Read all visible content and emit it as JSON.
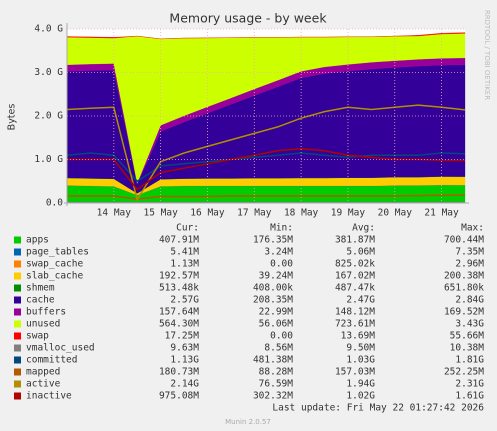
{
  "chart_data": {
    "type": "area",
    "title": "Memory usage - by week",
    "y_label": "Bytes",
    "watermark": "RRDTOOL / TOBI OETIKER",
    "categories": [
      null,
      null,
      "14 May",
      null,
      "15 May",
      null,
      "16 May",
      null,
      "17 May",
      null,
      "18 May",
      null,
      "19 May",
      null,
      "20 May",
      null,
      "21 May",
      null
    ],
    "ylim": [
      0,
      4000000000
    ],
    "yticks": [
      {
        "value": 0,
        "label": "0.0"
      },
      {
        "value": 1000000000,
        "label": "1.0 G"
      },
      {
        "value": 2000000000,
        "label": "2.0 G"
      },
      {
        "value": 3000000000,
        "label": "3.0 G"
      },
      {
        "value": 4000000000,
        "label": "4.0 G"
      }
    ],
    "grid": true,
    "legend_headers": [
      "Cur:",
      "Min:",
      "Avg:",
      "Max:"
    ],
    "series": [
      {
        "name": "apps",
        "color": "#00cc00",
        "style": "area",
        "cur": "407.91M",
        "min": "176.35M",
        "avg": "381.87M",
        "max": "700.44M",
        "values": [
          400000000,
          390000000,
          380000000,
          180000000,
          380000000,
          390000000,
          390000000,
          390000000,
          390000000,
          390000000,
          390000000,
          390000000,
          390000000,
          390000000,
          400000000,
          400000000,
          410000000,
          408000000
        ]
      },
      {
        "name": "page_tables",
        "color": "#0066b3",
        "style": "area",
        "cur": "5.41M",
        "min": "3.24M",
        "avg": "5.06M",
        "max": "7.35M",
        "values": [
          5000000,
          5000000,
          5000000,
          3300000,
          5000000,
          5000000,
          5000000,
          5000000,
          5000000,
          5000000,
          5000000,
          5000000,
          5000000,
          5000000,
          5000000,
          5000000,
          5400000,
          5400000
        ]
      },
      {
        "name": "swap_cache",
        "color": "#ff8000",
        "style": "area",
        "cur": "1.13M",
        "min": "0.00",
        "avg": "825.02k",
        "max": "2.96M",
        "values": [
          800000,
          800000,
          800000,
          0,
          800000,
          800000,
          800000,
          800000,
          800000,
          800000,
          800000,
          800000,
          800000,
          800000,
          900000,
          1000000,
          1100000,
          1130000
        ]
      },
      {
        "name": "slab_cache",
        "color": "#ffcc00",
        "style": "area",
        "cur": "192.57M",
        "min": "39.24M",
        "avg": "167.02M",
        "max": "200.38M",
        "values": [
          170000000,
          170000000,
          170000000,
          40000000,
          160000000,
          165000000,
          170000000,
          170000000,
          175000000,
          175000000,
          180000000,
          180000000,
          185000000,
          185000000,
          190000000,
          190000000,
          192000000,
          192600000
        ]
      },
      {
        "name": "shmem",
        "color": "#008f00",
        "style": "area",
        "cur": "513.48k",
        "min": "408.00k",
        "avg": "487.47k",
        "max": "651.80k",
        "values": [
          490000,
          490000,
          490000,
          410000,
          480000,
          480000,
          490000,
          490000,
          490000,
          490000,
          490000,
          490000,
          500000,
          500000,
          500000,
          510000,
          510000,
          513000
        ]
      },
      {
        "name": "cache",
        "color": "#330099",
        "style": "area",
        "cur": "2.57G",
        "min": "208.35M",
        "avg": "2.47G",
        "max": "2.84G",
        "values": [
          2450000000,
          2480000000,
          2500000000,
          210000000,
          1100000000,
          1300000000,
          1500000000,
          1700000000,
          1900000000,
          2100000000,
          2300000000,
          2400000000,
          2450000000,
          2500000000,
          2520000000,
          2550000000,
          2560000000,
          2570000000
        ]
      },
      {
        "name": "buffers",
        "color": "#990099",
        "style": "area",
        "cur": "157.64M",
        "min": "22.99M",
        "avg": "148.12M",
        "max": "169.52M",
        "values": [
          150000000,
          150000000,
          150000000,
          23000000,
          140000000,
          145000000,
          145000000,
          148000000,
          150000000,
          150000000,
          152000000,
          153000000,
          155000000,
          155000000,
          156000000,
          157000000,
          157000000,
          157600000
        ]
      },
      {
        "name": "unused",
        "color": "#ccff00",
        "style": "area",
        "cur": "564.30M",
        "min": "56.06M",
        "avg": "723.61M",
        "max": "3.43G",
        "values": [
          635000000,
          605000000,
          585000000,
          3380000000,
          1985000000,
          1785000000,
          1585000000,
          1385000000,
          1185000000,
          985000000,
          785000000,
          685000000,
          635000000,
          585000000,
          565000000,
          535000000,
          560000000,
          564000000
        ]
      },
      {
        "name": "swap",
        "color": "#ff0000",
        "style": "area",
        "cur": "17.25M",
        "min": "0.00",
        "avg": "13.69M",
        "max": "55.66M",
        "values": [
          17000000,
          17000000,
          17000000,
          0,
          0,
          0,
          0,
          0,
          0,
          0,
          0,
          0,
          0,
          0,
          0,
          17000000,
          17000000,
          17250000
        ]
      },
      {
        "name": "vmalloc_used",
        "color": "#808080",
        "style": "line",
        "cur": "9.63M",
        "min": "8.56M",
        "avg": "9.50M",
        "max": "10.38M",
        "values": [
          9500000,
          9500000,
          9500000,
          8600000,
          9500000,
          9500000,
          9500000,
          9500000,
          9500000,
          9500000,
          9500000,
          9500000,
          9500000,
          9500000,
          9600000,
          9600000,
          9600000,
          9630000
        ]
      },
      {
        "name": "committed",
        "color": "#00487d",
        "style": "line",
        "cur": "1.13G",
        "min": "481.38M",
        "avg": "1.03G",
        "max": "1.81G",
        "values": [
          1100000000,
          1150000000,
          1100000000,
          500000000,
          850000000,
          900000000,
          950000000,
          1000000000,
          1050000000,
          1100000000,
          1150000000,
          1100000000,
          1050000000,
          1100000000,
          1100000000,
          1100000000,
          1150000000,
          1130000000
        ]
      },
      {
        "name": "mapped",
        "color": "#b35a00",
        "style": "line",
        "cur": "180.73M",
        "min": "88.28M",
        "avg": "157.03M",
        "max": "252.25M",
        "values": [
          160000000,
          160000000,
          160000000,
          90000000,
          150000000,
          150000000,
          150000000,
          160000000,
          160000000,
          160000000,
          160000000,
          160000000,
          160000000,
          160000000,
          160000000,
          170000000,
          180000000,
          180700000
        ]
      },
      {
        "name": "active",
        "color": "#b38f00",
        "style": "line",
        "cur": "2.14G",
        "min": "76.59M",
        "avg": "1.94G",
        "max": "2.31G",
        "values": [
          2150000000,
          2180000000,
          2200000000,
          80000000,
          950000000,
          1150000000,
          1300000000,
          1450000000,
          1600000000,
          1750000000,
          1950000000,
          2100000000,
          2200000000,
          2150000000,
          2200000000,
          2250000000,
          2200000000,
          2140000000
        ]
      },
      {
        "name": "inactive",
        "color": "#b30000",
        "style": "line",
        "cur": "975.08M",
        "min": "302.32M",
        "avg": "1.02G",
        "max": "1.61G",
        "values": [
          1000000000,
          1000000000,
          1000000000,
          310000000,
          700000000,
          800000000,
          900000000,
          1000000000,
          1100000000,
          1200000000,
          1250000000,
          1200000000,
          1100000000,
          1050000000,
          1000000000,
          1000000000,
          980000000,
          975000000
        ]
      }
    ],
    "last_update": "Last update: Fri May 22 01:27:42 2026",
    "footer": "Munin 2.0.57"
  }
}
